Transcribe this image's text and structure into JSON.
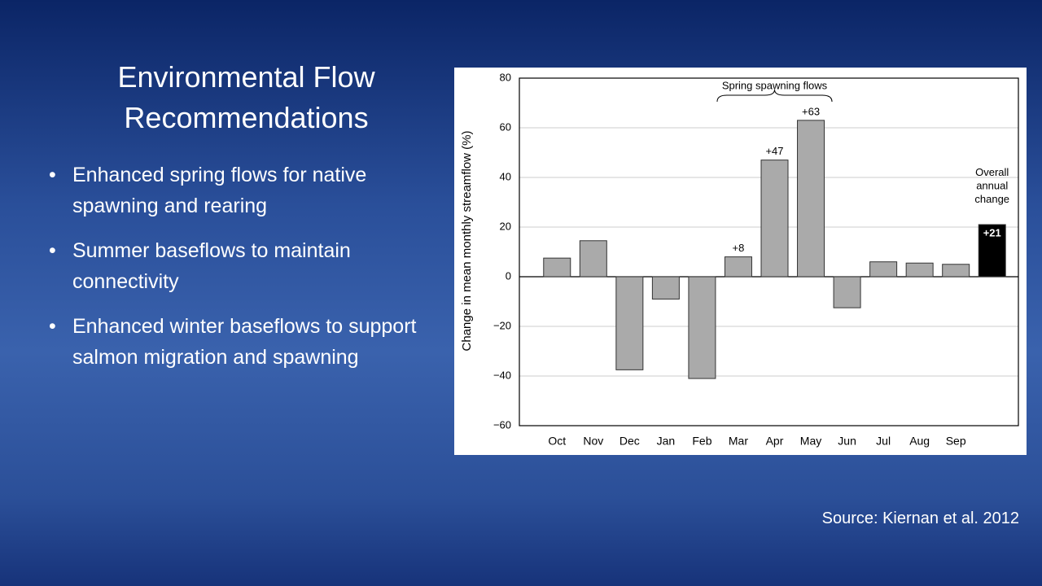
{
  "slide": {
    "title": [
      "Environmental Flow",
      "Recommendations"
    ],
    "bullets": [
      "Enhanced spring flows for native spawning and rearing",
      "Summer baseflows to maintain connectivity",
      "Enhanced winter baseflows to support salmon migration and spawning"
    ],
    "source": "Source: Kiernan et al. 2012"
  },
  "chart_data": {
    "type": "bar",
    "y_label": "Change in mean monthly streamflow (%)",
    "categories": [
      "Oct",
      "Nov",
      "Dec",
      "Jan",
      "Feb",
      "Mar",
      "Apr",
      "May",
      "Jun",
      "Jul",
      "Aug",
      "Sep",
      null
    ],
    "values": [
      7.5,
      14.5,
      -37.5,
      -9,
      -41,
      8,
      47,
      63,
      -12.5,
      6,
      5.5,
      5,
      21
    ],
    "value_labels": [
      null,
      null,
      null,
      null,
      null,
      "+8",
      "+47",
      "+63",
      null,
      null,
      null,
      null,
      "+21"
    ],
    "colors": [
      "#aaaaaa",
      "#aaaaaa",
      "#aaaaaa",
      "#aaaaaa",
      "#aaaaaa",
      "#aaaaaa",
      "#aaaaaa",
      "#aaaaaa",
      "#aaaaaa",
      "#aaaaaa",
      "#aaaaaa",
      "#aaaaaa",
      "#000000"
    ],
    "ylim": [
      -60,
      80
    ],
    "yticks": [
      {
        "value": -60,
        "label": "−60"
      },
      {
        "value": -40,
        "label": "−40"
      },
      {
        "value": -20,
        "label": "−20"
      },
      0,
      20,
      40,
      60,
      80
    ],
    "grid": true,
    "annotations": [
      {
        "text": "Spring spawning flows"
      },
      {
        "text": "Overall annual change"
      }
    ]
  }
}
